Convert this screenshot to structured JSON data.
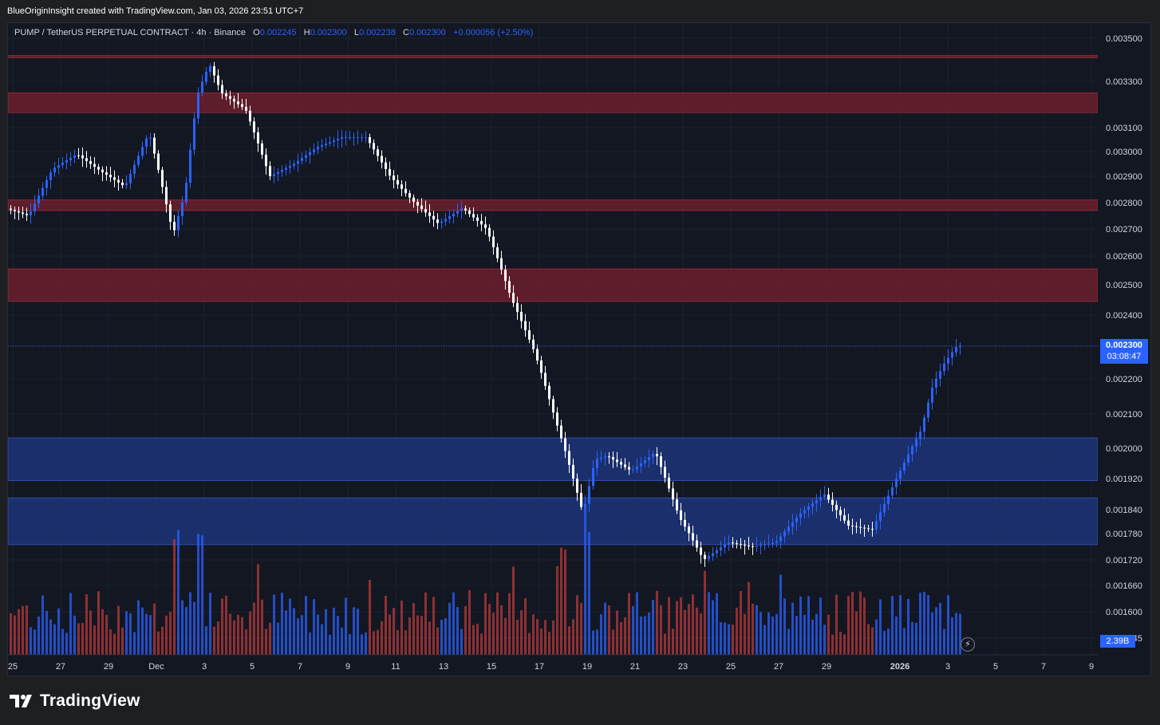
{
  "header": {
    "credit": "BlueOriginInsight created with TradingView.com, Jan 03, 2026 23:51 UTC+7"
  },
  "legend": {
    "symbol": "PUMP / TetherUS PERPETUAL CONTRACT · 4h · Binance",
    "o_label": "O",
    "o_value": "0.002245",
    "h_label": "H",
    "h_value": "0.002300",
    "l_label": "L",
    "l_value": "0.002238",
    "c_label": "C",
    "c_value": "0.002300",
    "change": "+0.000056 (+2.50%)"
  },
  "last_price": {
    "price": "0.002300",
    "countdown": "03:08:47"
  },
  "volume_tag": "2.39B",
  "footer": {
    "brand": "TradingView"
  },
  "colors": {
    "background": "#131722",
    "up_candle": "#2962ff",
    "down_candle": "#ffffff",
    "up_volume": "#2962ff",
    "down_volume": "#b83a3a",
    "resistance_zone": "#6b1e2c",
    "support_zone": "#1e3a8a"
  },
  "chart_data": {
    "type": "candlestick",
    "title": "PUMP / TetherUS PERPETUAL CONTRACT · 4h · Binance",
    "timeframe": "4h",
    "y_axis_labels": [
      "0.003500",
      "0.003300",
      "0.003100",
      "0.003000",
      "0.002900",
      "0.002800",
      "0.002700",
      "0.002600",
      "0.002500",
      "0.002400",
      "0.002300",
      "0.002200",
      "0.002100",
      "0.002000",
      "0.001920",
      "0.001840",
      "0.001780",
      "0.001720",
      "0.001660",
      "0.001600",
      "0.001545"
    ],
    "y_axis_scale": "log",
    "x_axis_labels": [
      "25",
      "27",
      "29",
      "Dec",
      "3",
      "5",
      "7",
      "9",
      "11",
      "13",
      "15",
      "17",
      "19",
      "21",
      "23",
      "25",
      "27",
      "29",
      "2026",
      "3",
      "5",
      "7",
      "9"
    ],
    "x_range": [
      "2025-11-25",
      "2026-01-09"
    ],
    "grid": true,
    "resistance_zones": [
      [
        0.00341,
        0.00342
      ],
      [
        0.003165,
        0.00325
      ],
      [
        0.00277,
        0.00281
      ],
      [
        0.002445,
        0.002555
      ]
    ],
    "support_zones": [
      [
        0.001915,
        0.00203
      ],
      [
        0.001755,
        0.00187
      ]
    ],
    "close_path": [
      [
        "2025-11-25",
        0.00278
      ],
      [
        "2025-11-26",
        0.00275
      ],
      [
        "2025-11-27",
        0.00293
      ],
      [
        "2025-11-28",
        0.00299
      ],
      [
        "2025-11-29",
        0.00292
      ],
      [
        "2025-11-30",
        0.00286
      ],
      [
        "2025-12-01",
        0.00308
      ],
      [
        "2025-12-02",
        0.00268
      ],
      [
        "2025-12-02T12:00",
        0.00284
      ],
      [
        "2025-12-03",
        0.00324
      ],
      [
        "2025-12-03T12:00",
        0.00338
      ],
      [
        "2025-12-04",
        0.00325
      ],
      [
        "2025-12-05",
        0.00318
      ],
      [
        "2025-12-06",
        0.0029
      ],
      [
        "2025-12-07",
        0.00295
      ],
      [
        "2025-12-08",
        0.00302
      ],
      [
        "2025-12-09",
        0.00306
      ],
      [
        "2025-12-10",
        0.00306
      ],
      [
        "2025-12-11",
        0.0029
      ],
      [
        "2025-12-12",
        0.0028
      ],
      [
        "2025-12-13",
        0.00272
      ],
      [
        "2025-12-14",
        0.00278
      ],
      [
        "2025-12-15",
        0.0027
      ],
      [
        "2025-12-16",
        0.00246
      ],
      [
        "2025-12-17",
        0.00228
      ],
      [
        "2025-12-18",
        0.00205
      ],
      [
        "2025-12-19",
        0.00183
      ],
      [
        "2025-12-19T12:00",
        0.00197
      ],
      [
        "2025-12-20",
        0.00198
      ],
      [
        "2025-12-21",
        0.00194
      ],
      [
        "2025-12-22",
        0.00199
      ],
      [
        "2025-12-23",
        0.00182
      ],
      [
        "2025-12-24",
        0.00172
      ],
      [
        "2025-12-25",
        0.00176
      ],
      [
        "2025-12-26",
        0.00175
      ],
      [
        "2025-12-27",
        0.00176
      ],
      [
        "2025-12-28",
        0.00183
      ],
      [
        "2025-12-29",
        0.00188
      ],
      [
        "2025-12-30",
        0.0018
      ],
      [
        "2025-12-31",
        0.00179
      ],
      [
        "2026-01-01",
        0.00192
      ],
      [
        "2026-01-02",
        0.00205
      ],
      [
        "2026-01-02T12:00",
        0.00218
      ],
      [
        "2026-01-03",
        0.00225
      ],
      [
        "2026-01-03T12:00",
        0.0023
      ]
    ],
    "volume_peaks": [
      [
        "2025-12-02",
        "high"
      ],
      [
        "2025-12-03",
        "high"
      ],
      [
        "2025-12-18",
        "high"
      ],
      [
        "2025-12-19",
        "high"
      ]
    ],
    "last_price": 0.0023,
    "last_volume": "2.39B"
  }
}
